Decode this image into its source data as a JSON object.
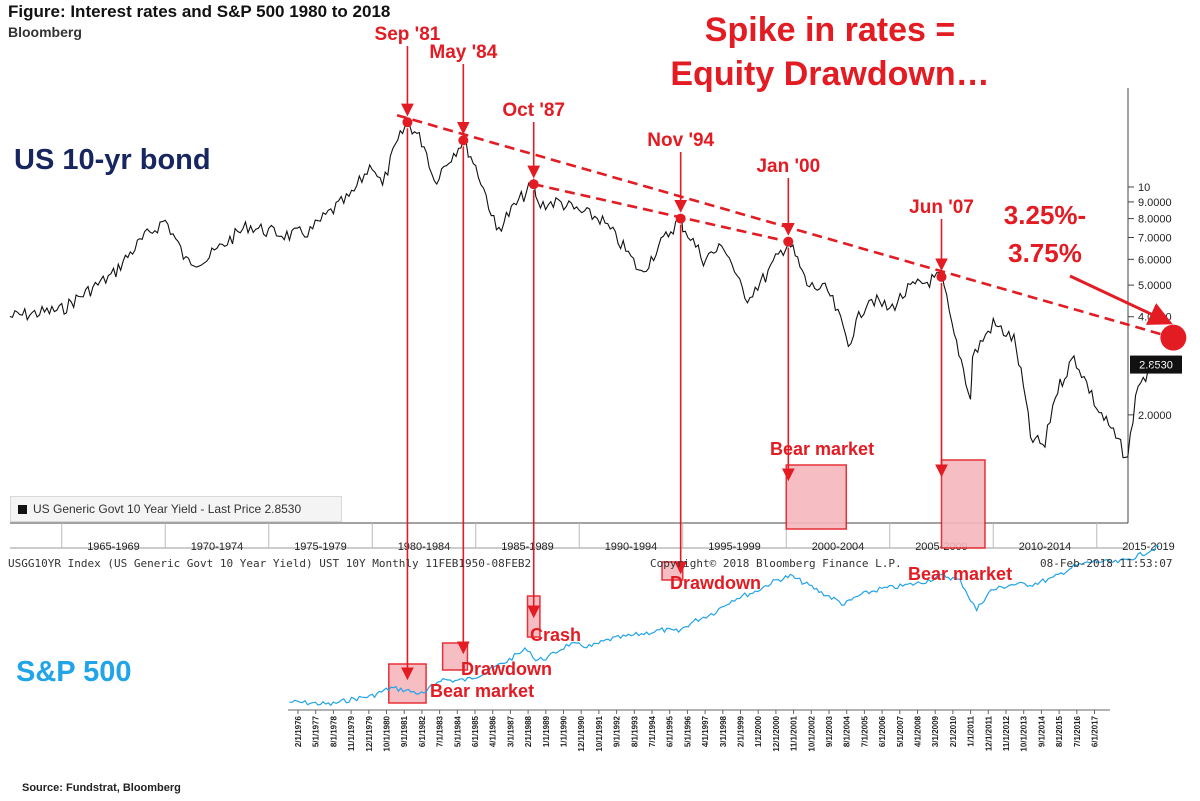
{
  "header": {
    "title": "Figure: Interest rates and S&P 500 1980 to 2018",
    "subtitle": "Bloomberg",
    "headline_line1": "Spike in rates =",
    "headline_line2": "Equity Drawdown…"
  },
  "panels": {
    "bond_label": "US 10-yr bond",
    "sp_label": "S&P 500",
    "target_line1": "3.25%-",
    "target_line2": "3.75%"
  },
  "legend": {
    "text": "US Generic Govt 10 Year Yield - Last Price 2.8530"
  },
  "footer": {
    "left": "USGG10YR Index (US Generic Govt 10 Year Yield) UST 10Y  Monthly 11FEB1950-08FEB2",
    "center": "Copyright© 2018 Bloomberg Finance L.P.",
    "right": "08-Feb-2018 11:53:07"
  },
  "source": "Source: Fundstrat, Bloomberg",
  "colors": {
    "red": "#e31b23",
    "navy": "#17265e",
    "bond_line": "#111111",
    "sp_line": "#22a4e8",
    "highlight_fill": "#f6b8bd"
  },
  "chart_data": [
    {
      "type": "line",
      "title": "US 10-yr bond",
      "axis_scale": "log",
      "y_ticks": [
        "10",
        "9.0000",
        "8.0000",
        "7.0000",
        "6.0000",
        "5.0000",
        "4.0000",
        "2.0000"
      ],
      "last_price_label": "2.8530",
      "x_period_labels": [
        "1965-1969",
        "1970-1974",
        "1975-1979",
        "1980-1984",
        "1985-1989",
        "1990-1994",
        "1995-1999",
        "2000-2004",
        "2005-2009",
        "2010-2014",
        "2015-2019"
      ],
      "peaks": [
        {
          "label": "Sep '81",
          "year": 1981.7,
          "value": 15.8
        },
        {
          "label": "May '84",
          "year": 1984.4,
          "value": 13.9
        },
        {
          "label": "Oct '87",
          "year": 1987.8,
          "value": 10.2
        },
        {
          "label": "Nov '94",
          "year": 1994.9,
          "value": 8.0
        },
        {
          "label": "Jan '00",
          "year": 2000.1,
          "value": 6.8
        },
        {
          "label": "Jun '07",
          "year": 2007.5,
          "value": 5.3
        }
      ],
      "projection_label": "3.25%- 3.75%",
      "series": [
        {
          "values": [
            [
              1962.5,
              4.0
            ],
            [
              1965,
              4.2
            ],
            [
              1966.5,
              4.9
            ],
            [
              1967.5,
              5.4
            ],
            [
              1969,
              7.0
            ],
            [
              1970,
              7.9
            ],
            [
              1971,
              5.9
            ],
            [
              1972,
              6.0
            ],
            [
              1973,
              6.8
            ],
            [
              1974,
              7.6
            ],
            [
              1975,
              7.3
            ],
            [
              1976,
              7.1
            ],
            [
              1977,
              7.3
            ],
            [
              1978,
              8.4
            ],
            [
              1979,
              9.4
            ],
            [
              1980,
              11.8
            ],
            [
              1980.5,
              10.0
            ],
            [
              1981,
              12.6
            ],
            [
              1981.7,
              15.8
            ],
            [
              1982.5,
              13.5
            ],
            [
              1983,
              10.4
            ],
            [
              1984.4,
              13.9
            ],
            [
              1985,
              11.5
            ],
            [
              1986,
              7.3
            ],
            [
              1987.8,
              10.2
            ],
            [
              1988,
              8.8
            ],
            [
              1989,
              9.0
            ],
            [
              1990,
              8.4
            ],
            [
              1991,
              8.0
            ],
            [
              1992,
              6.7
            ],
            [
              1993,
              5.4
            ],
            [
              1994.9,
              8.0
            ],
            [
              1995,
              7.6
            ],
            [
              1996,
              6.0
            ],
            [
              1997,
              6.6
            ],
            [
              1998,
              4.5
            ],
            [
              1999,
              5.3
            ],
            [
              2000.1,
              6.8
            ],
            [
              2001,
              5.0
            ],
            [
              2002,
              4.8
            ],
            [
              2003,
              3.3
            ],
            [
              2004,
              4.6
            ],
            [
              2005,
              4.2
            ],
            [
              2006,
              4.9
            ],
            [
              2007.5,
              5.3
            ],
            [
              2008,
              3.7
            ],
            [
              2008.9,
              2.2
            ],
            [
              2009,
              3.0
            ],
            [
              2010,
              3.8
            ],
            [
              2011,
              3.4
            ],
            [
              2011.8,
              1.7
            ],
            [
              2012.5,
              1.6
            ],
            [
              2013,
              2.3
            ],
            [
              2013.9,
              3.0
            ],
            [
              2015,
              2.1
            ],
            [
              2016.5,
              1.45
            ],
            [
              2017,
              2.5
            ],
            [
              2018.1,
              2.853
            ]
          ]
        }
      ]
    },
    {
      "type": "line",
      "title": "S&P 500",
      "x_labels": [
        "2/1/1976",
        "5/1/1977",
        "8/1/1978",
        "11/1/1979",
        "12/1/1979",
        "10/1/1980",
        "9/1/1981",
        "6/1/1982",
        "7/1/1983",
        "5/1/1984",
        "6/1/1985",
        "4/1/1986",
        "3/1/1987",
        "2/1/1988",
        "1/1/1989",
        "1/1/1990",
        "12/1/1990",
        "10/1/1991",
        "9/1/1992",
        "8/1/1993",
        "7/1/1994",
        "6/1/1995",
        "5/1/1996",
        "4/1/1997",
        "3/1/1998",
        "2/1/1999",
        "1/1/2000",
        "12/1/2000",
        "11/1/2001",
        "10/1/2002",
        "9/1/2003",
        "8/1/2004",
        "7/1/2005",
        "6/1/2006",
        "5/1/2007",
        "4/1/2008",
        "3/1/2009",
        "2/1/2010",
        "1/1/2011",
        "12/1/2011",
        "11/1/2012",
        "10/1/2013",
        "9/1/2014",
        "8/1/2015",
        "7/1/2016",
        "6/1/2017"
      ],
      "events": [
        {
          "label": "Bear market",
          "start": 1980.8,
          "end": 1982.6
        },
        {
          "label": "Drawdown",
          "start": 1983.4,
          "end": 1984.6
        },
        {
          "label": "Crash",
          "start": 1987.5,
          "end": 1988.1
        },
        {
          "label": "Drawdown",
          "start": 1994.0,
          "end": 1995.0
        },
        {
          "label": "Bear market",
          "start": 2000.0,
          "end": 2002.9
        },
        {
          "label": "Bear market",
          "start": 2007.5,
          "end": 2009.6
        }
      ],
      "series": [
        {
          "values": [
            [
              1976,
              100
            ],
            [
              1977,
              98
            ],
            [
              1978,
              95
            ],
            [
              1979,
              106
            ],
            [
              1980,
              114
            ],
            [
              1980.9,
              135
            ],
            [
              1981.5,
              130
            ],
            [
              1982.5,
              118
            ],
            [
              1983.3,
              163
            ],
            [
              1984,
              158
            ],
            [
              1984.6,
              162
            ],
            [
              1985.5,
              190
            ],
            [
              1986.5,
              240
            ],
            [
              1987.5,
              315
            ],
            [
              1987.9,
              245
            ],
            [
              1988.5,
              260
            ],
            [
              1989.5,
              345
            ],
            [
              1990.6,
              330
            ],
            [
              1991.5,
              385
            ],
            [
              1992.5,
              415
            ],
            [
              1993.5,
              450
            ],
            [
              1994,
              470
            ],
            [
              1994.8,
              455
            ],
            [
              1995.5,
              560
            ],
            [
              1996.5,
              680
            ],
            [
              1997.5,
              920
            ],
            [
              1998.5,
              1070
            ],
            [
              1999.5,
              1360
            ],
            [
              2000.2,
              1500
            ],
            [
              2001,
              1250
            ],
            [
              2001.7,
              1050
            ],
            [
              2002.8,
              810
            ],
            [
              2003.5,
              980
            ],
            [
              2004.5,
              1130
            ],
            [
              2005.5,
              1200
            ],
            [
              2006.5,
              1300
            ],
            [
              2007.6,
              1520
            ],
            [
              2008.4,
              1350
            ],
            [
              2008.9,
              900
            ],
            [
              2009.2,
              720
            ],
            [
              2009.9,
              1100
            ],
            [
              2010.9,
              1250
            ],
            [
              2011.9,
              1260
            ],
            [
              2012.9,
              1430
            ],
            [
              2013.9,
              1840
            ],
            [
              2014.9,
              2060
            ],
            [
              2015.9,
              2000
            ],
            [
              2016.4,
              2100
            ],
            [
              2017.1,
              2360
            ],
            [
              2018.0,
              2820
            ]
          ]
        }
      ]
    }
  ]
}
